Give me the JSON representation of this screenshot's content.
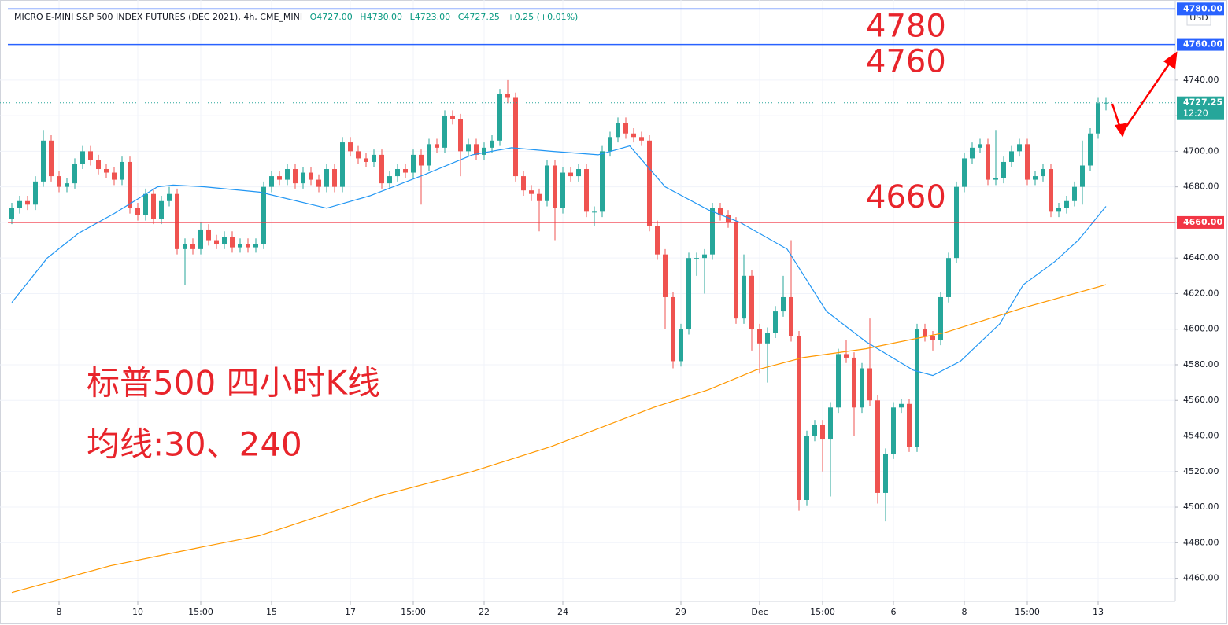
{
  "chart_data": {
    "type": "candlestick",
    "header": {
      "title": "MICRO E-MINI S&P 500 INDEX FUTURES (DEC 2021), 4h, CME_MINI",
      "ohlc": [
        "O4727.00",
        "H4730.00",
        "L4723.00",
        "C4727.25"
      ],
      "change": "+0.25 (+0.01%)"
    },
    "currency": "USD",
    "overlay_text": [
      "标普500 四小时K线",
      "均线:30、240"
    ],
    "up_color": "#26a69a",
    "down_color": "#ef5350",
    "categories": [
      null,
      null,
      null,
      null,
      null,
      null,
      "8",
      null,
      null,
      null,
      null,
      null,
      null,
      null,
      null,
      null,
      "10",
      null,
      null,
      null,
      null,
      null,
      null,
      null,
      "15:00",
      null,
      null,
      null,
      null,
      null,
      null,
      null,
      null,
      "15",
      null,
      null,
      null,
      null,
      null,
      null,
      null,
      null,
      null,
      "17",
      null,
      null,
      null,
      null,
      null,
      null,
      null,
      "15:00",
      null,
      null,
      null,
      null,
      null,
      null,
      null,
      null,
      "22",
      null,
      null,
      null,
      null,
      null,
      null,
      null,
      null,
      null,
      "24",
      null,
      null,
      null,
      null,
      null,
      null,
      null,
      null,
      null,
      null,
      null,
      null,
      null,
      null,
      "29",
      null,
      null,
      null,
      null,
      null,
      null,
      null,
      null,
      null,
      "Dec",
      null,
      null,
      null,
      null,
      null,
      null,
      null,
      "15:00",
      null,
      null,
      null,
      null,
      null,
      null,
      null,
      null,
      "6",
      null,
      null,
      null,
      null,
      null,
      null,
      null,
      null,
      "8",
      null,
      null,
      null,
      null,
      null,
      null,
      null,
      "15:00",
      null,
      null,
      null,
      null,
      null,
      null,
      null,
      null,
      "13",
      null
    ],
    "open": [
      4662,
      4668,
      4672,
      4670,
      4683,
      4706,
      4686,
      4680,
      4682,
      4693,
      4700,
      4695,
      4690,
      4688,
      4684,
      4694,
      4668,
      4664,
      4676,
      4662,
      4672,
      4676,
      4645,
      4648,
      4645,
      4656,
      4650,
      4648,
      4652,
      4646,
      4648,
      4646,
      4648,
      4680,
      4686,
      4684,
      4690,
      4682,
      4688,
      4684,
      4680,
      4690,
      4680,
      4705,
      4700,
      4696,
      4694,
      4698,
      4682,
      4686,
      4690,
      4688,
      4698,
      4692,
      4704,
      4702,
      4720,
      4718,
      4700,
      4704,
      4698,
      4702,
      4706,
      4732,
      4730,
      4686,
      4678,
      4676,
      4672,
      4692,
      4668,
      4688,
      4686,
      4690,
      4666,
      4666,
      4700,
      4708,
      4716,
      4710,
      4708,
      4706,
      4658,
      4642,
      4618,
      4582,
      4600,
      4640,
      4640,
      4642,
      4668,
      4664,
      4660,
      4606,
      4630,
      4600,
      4592,
      4598,
      4610,
      4618,
      4596,
      4504,
      4540,
      4546,
      4538,
      4556,
      4586,
      4584,
      4556,
      4578,
      4560,
      4508,
      4530,
      4556,
      4558,
      4534,
      4600,
      4596,
      4594,
      4618,
      4640,
      4680,
      4696,
      4702,
      4704,
      4684,
      4685,
      4694,
      4700,
      4704,
      4684,
      4686,
      4690,
      4666,
      4668,
      4672,
      4680,
      4692,
      4710,
      4727
    ],
    "high": [
      4671,
      4675,
      4675,
      4686,
      4712,
      4709,
      4689,
      4685,
      4696,
      4703,
      4703,
      4698,
      4693,
      4691,
      4697,
      4697,
      4671,
      4679,
      4679,
      4675,
      4680,
      4679,
      4651,
      4651,
      4660,
      4659,
      4653,
      4655,
      4655,
      4651,
      4651,
      4651,
      4683,
      4689,
      4689,
      4693,
      4693,
      4691,
      4691,
      4687,
      4693,
      4693,
      4708,
      4708,
      4703,
      4699,
      4701,
      4701,
      4689,
      4693,
      4693,
      4701,
      4701,
      4707,
      4707,
      4723,
      4723,
      4721,
      4707,
      4707,
      4705,
      4709,
      4735,
      4740,
      4733,
      4689,
      4681,
      4679,
      4695,
      4695,
      4691,
      4691,
      4693,
      4693,
      4669,
      4703,
      4711,
      4719,
      4719,
      4713,
      4711,
      4709,
      4661,
      4645,
      4621,
      4603,
      4643,
      4643,
      4645,
      4671,
      4671,
      4667,
      4663,
      4642,
      4633,
      4603,
      4601,
      4613,
      4630,
      4650,
      4599,
      4543,
      4549,
      4549,
      4559,
      4589,
      4594,
      4587,
      4581,
      4606,
      4563,
      4533,
      4559,
      4561,
      4561,
      4603,
      4603,
      4599,
      4621,
      4643,
      4683,
      4699,
      4705,
      4707,
      4707,
      4712,
      4697,
      4703,
      4707,
      4707,
      4689,
      4693,
      4693,
      4671,
      4675,
      4683,
      4706,
      4713,
      4730,
      4730
    ],
    "low": [
      4659,
      4665,
      4667,
      4667,
      4680,
      4683,
      4677,
      4677,
      4679,
      4690,
      4692,
      4687,
      4685,
      4681,
      4681,
      4665,
      4661,
      4661,
      4659,
      4659,
      4669,
      4642,
      4625,
      4642,
      4642,
      4647,
      4645,
      4645,
      4643,
      4643,
      4643,
      4643,
      4645,
      4677,
      4681,
      4681,
      4679,
      4679,
      4681,
      4677,
      4677,
      4677,
      4677,
      4697,
      4693,
      4691,
      4691,
      4679,
      4679,
      4683,
      4685,
      4685,
      4670,
      4689,
      4699,
      4699,
      4715,
      4686,
      4697,
      4695,
      4695,
      4699,
      4703,
      4727,
      4683,
      4675,
      4672,
      4655,
      4669,
      4650,
      4665,
      4683,
      4683,
      4663,
      4658,
      4663,
      4697,
      4705,
      4707,
      4705,
      4703,
      4655,
      4639,
      4600,
      4578,
      4579,
      4597,
      4630,
      4620,
      4639,
      4661,
      4657,
      4603,
      4603,
      4588,
      4575,
      4570,
      4595,
      4607,
      4593,
      4498,
      4501,
      4537,
      4520,
      4506,
      4553,
      4581,
      4540,
      4553,
      4557,
      4502,
      4492,
      4527,
      4553,
      4531,
      4531,
      4593,
      4588,
      4591,
      4615,
      4637,
      4677,
      4693,
      4699,
      4681,
      4681,
      4682,
      4691,
      4697,
      4681,
      4681,
      4683,
      4663,
      4663,
      4665,
      4669,
      4670,
      4689,
      4707,
      4723
    ],
    "close": [
      4668,
      4672,
      4670,
      4683,
      4706,
      4686,
      4680,
      4682,
      4693,
      4700,
      4695,
      4690,
      4688,
      4684,
      4694,
      4668,
      4664,
      4676,
      4662,
      4672,
      4676,
      4645,
      4648,
      4645,
      4656,
      4650,
      4648,
      4652,
      4646,
      4648,
      4646,
      4648,
      4680,
      4686,
      4684,
      4690,
      4682,
      4688,
      4684,
      4680,
      4690,
      4680,
      4705,
      4700,
      4696,
      4694,
      4698,
      4682,
      4686,
      4690,
      4688,
      4698,
      4692,
      4704,
      4702,
      4720,
      4718,
      4700,
      4704,
      4698,
      4702,
      4706,
      4732,
      4730,
      4686,
      4678,
      4676,
      4672,
      4692,
      4668,
      4688,
      4686,
      4690,
      4666,
      4666,
      4700,
      4708,
      4716,
      4710,
      4708,
      4706,
      4658,
      4642,
      4618,
      4582,
      4600,
      4640,
      4640,
      4642,
      4668,
      4664,
      4660,
      4606,
      4630,
      4600,
      4592,
      4598,
      4610,
      4618,
      4596,
      4504,
      4540,
      4546,
      4538,
      4556,
      4586,
      4584,
      4556,
      4578,
      4560,
      4508,
      4530,
      4556,
      4558,
      4534,
      4600,
      4596,
      4594,
      4618,
      4640,
      4680,
      4696,
      4702,
      4704,
      4684,
      4685,
      4694,
      4700,
      4704,
      4684,
      4686,
      4690,
      4666,
      4668,
      4672,
      4680,
      4692,
      4710,
      4727,
      4727.25
    ],
    "series": [
      {
        "color": "#2196f3",
        "x": [
          0,
          4.5,
          8.5,
          13,
          18.5,
          20.5,
          24.5,
          31.5,
          40,
          45.5,
          52.5,
          58.5,
          63.5,
          68.5,
          74.5,
          78.5,
          83,
          88.5,
          92.5,
          98.5,
          103.5,
          108.5,
          114.5,
          117,
          120.5,
          125.5,
          128.5,
          132.5,
          135.5,
          139
        ],
        "values": [
          4615,
          4640,
          4654,
          4665,
          4680,
          4681,
          4680,
          4677,
          4668,
          4675,
          4687,
          4698,
          4702,
          4700,
          4698,
          4703,
          4680,
          4667,
          4660,
          4645,
          4610,
          4593,
          4577,
          4574,
          4582,
          4603,
          4625,
          4638,
          4650,
          4669
        ]
      },
      {
        "color": "#ff9800",
        "x": [
          0,
          12.5,
          23.5,
          31.5,
          40.5,
          46.5,
          58.5,
          68.5,
          81.5,
          88.5,
          94.5,
          100.5,
          108.5,
          118.5,
          128.5,
          139
        ],
        "values": [
          4452,
          4467,
          4477,
          4484,
          4497,
          4506,
          4520,
          4534,
          4556,
          4566,
          4577,
          4584,
          4589,
          4598,
          4612,
          4625
        ]
      }
    ],
    "levels": [
      {
        "value": 4780,
        "label": "4780.00",
        "annotation": "4780",
        "color": "#2962ff"
      },
      {
        "value": 4760,
        "label": "4760.00",
        "annotation": "4760",
        "color": "#2962ff"
      },
      {
        "value": 4660,
        "label": "4660.00",
        "annotation": "4660",
        "color": "#f23645"
      }
    ],
    "last_price": {
      "value": 4727.25,
      "label": "4727.25",
      "countdown": "12:20",
      "color": "#26a69a"
    },
    "ylim": [
      4447,
      4785
    ],
    "yticks": [
      {
        "value": 4460,
        "label": "4460.00"
      },
      {
        "value": 4480,
        "label": "4480.00"
      },
      {
        "value": 4500,
        "label": "4500.00"
      },
      {
        "value": 4520,
        "label": "4520.00"
      },
      {
        "value": 4540,
        "label": "4540.00"
      },
      {
        "value": 4560,
        "label": "4560.00"
      },
      {
        "value": 4580,
        "label": "4580.00"
      },
      {
        "value": 4600,
        "label": "4600.00"
      },
      {
        "value": 4620,
        "label": "4620.00"
      },
      {
        "value": 4640,
        "label": "4640.00"
      },
      {
        "value": 4660,
        "label": "4660.00"
      },
      {
        "value": 4680,
        "label": "4680.00"
      },
      {
        "value": 4700,
        "label": "4700.00"
      },
      {
        "value": 4720,
        "label": "4720.00"
      },
      {
        "value": 4740,
        "label": "4740.00"
      }
    ],
    "grid": true
  }
}
